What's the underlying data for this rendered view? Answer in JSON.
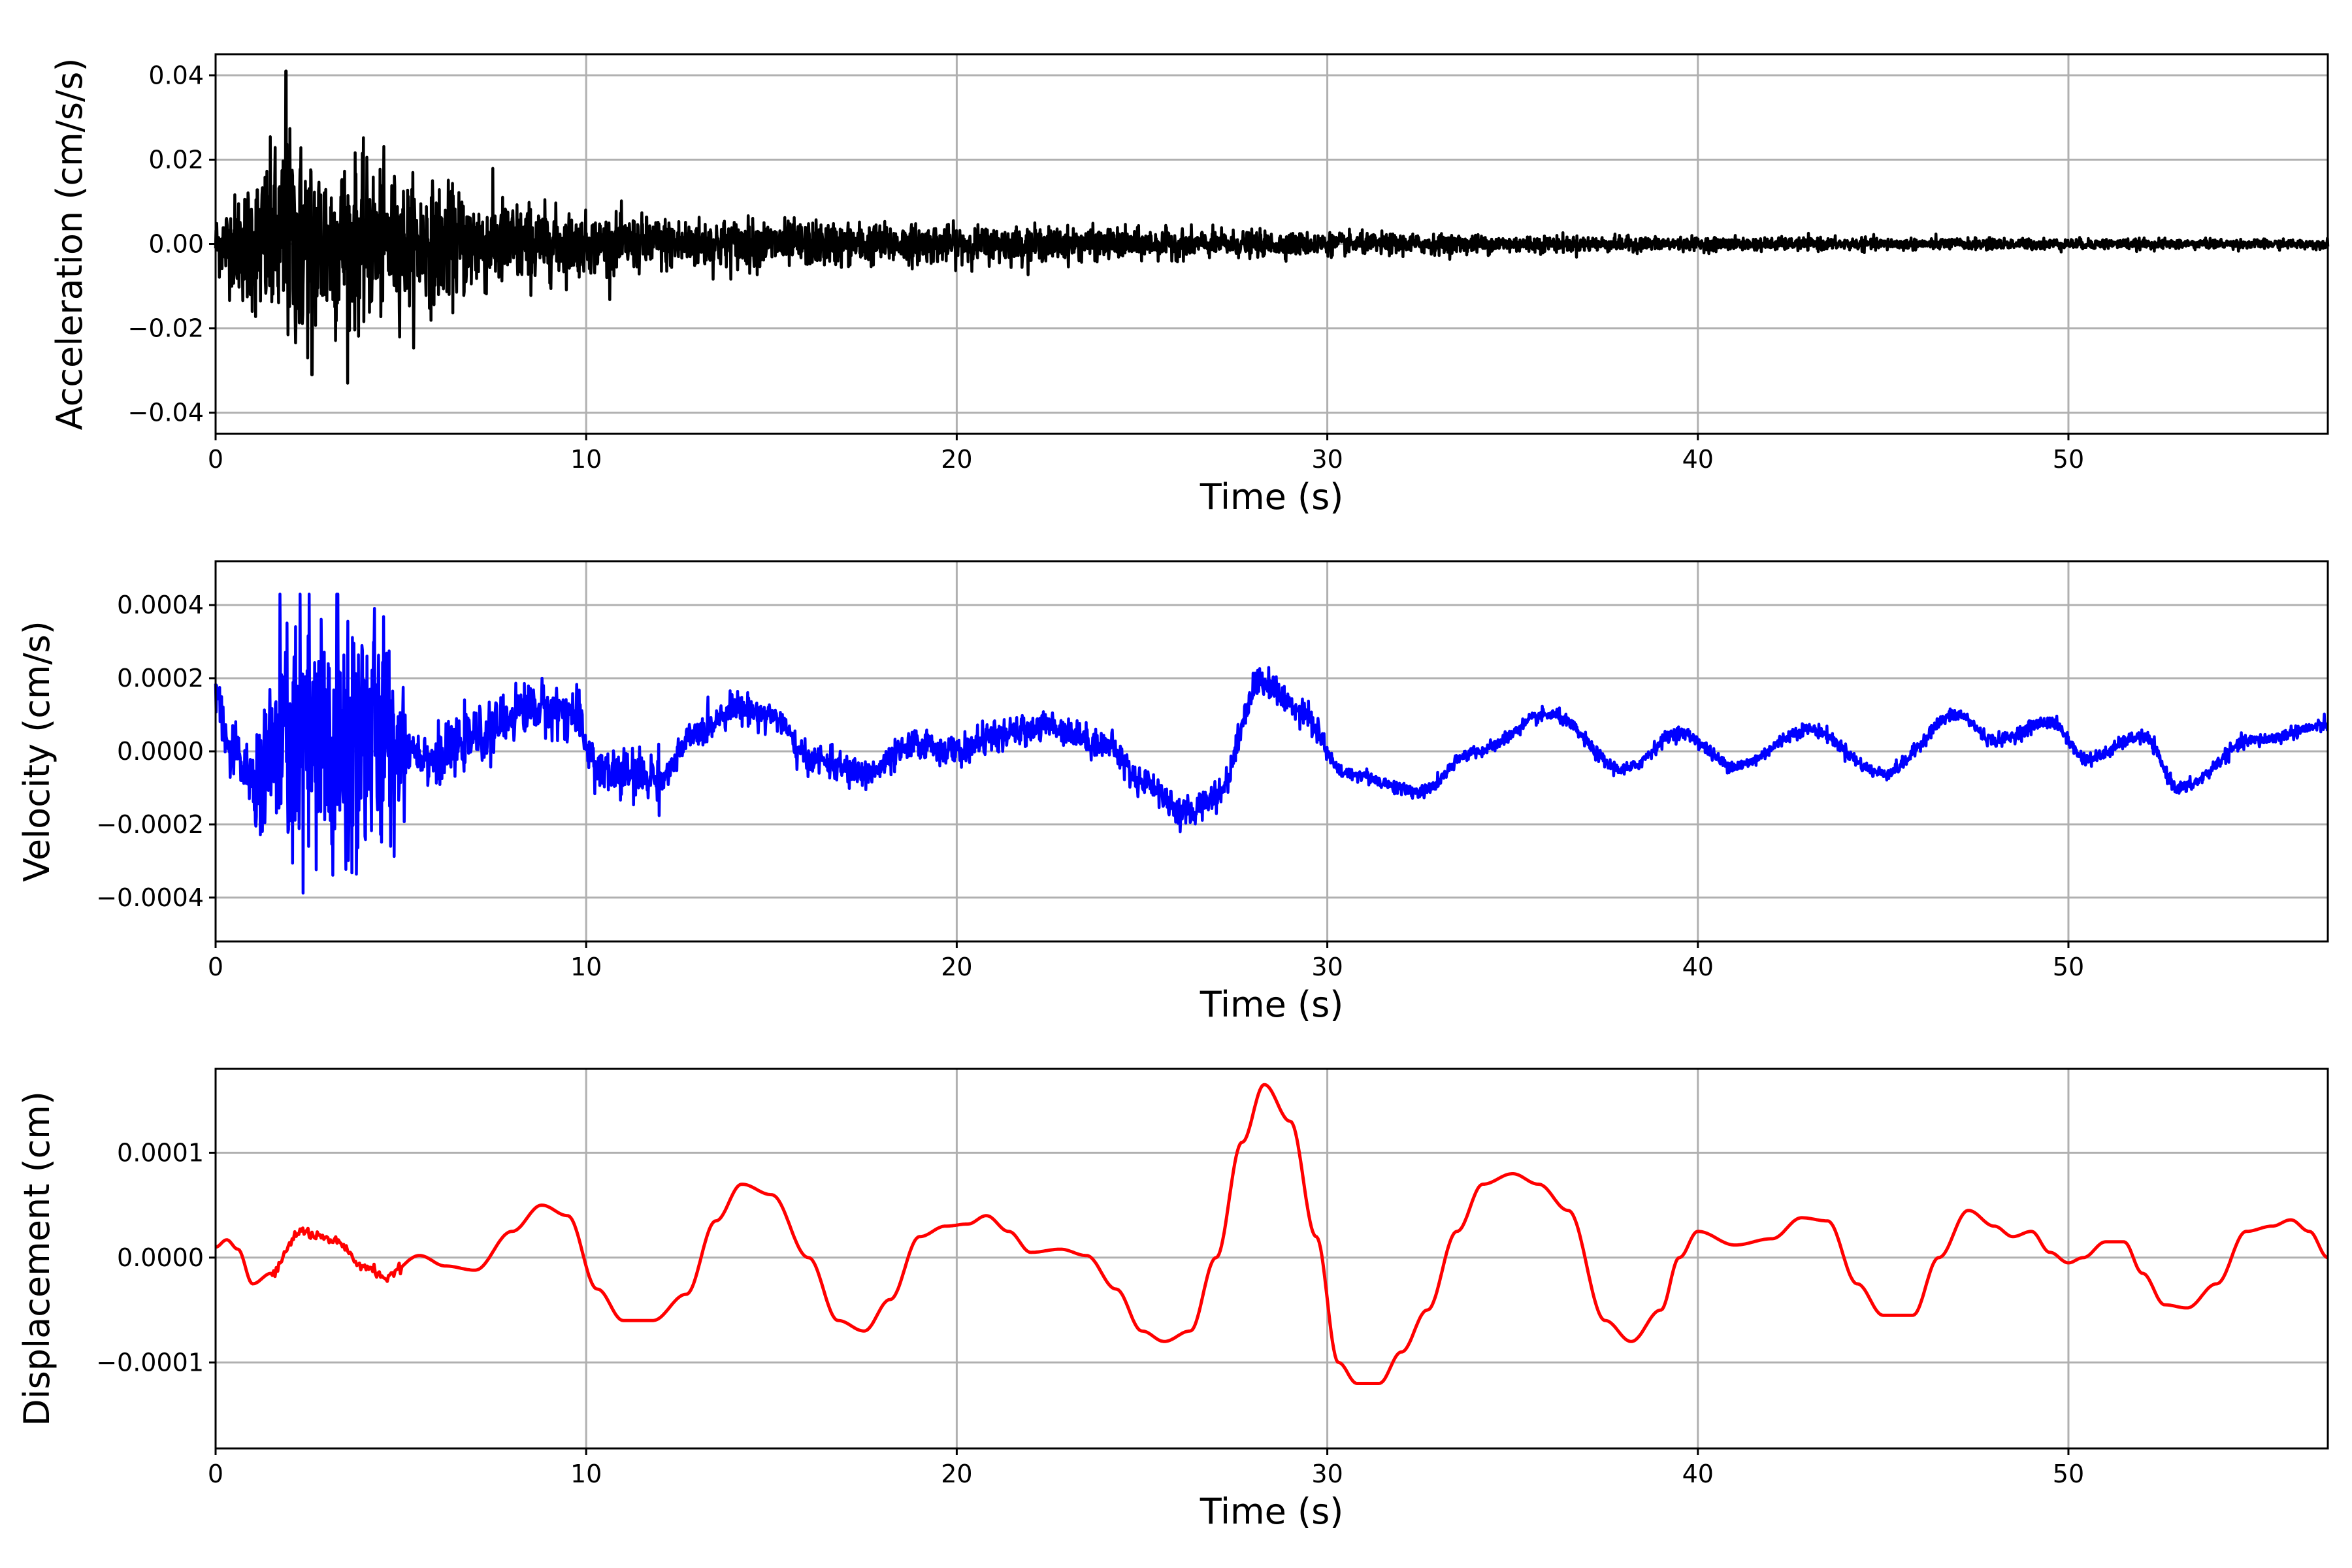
{
  "colors": {
    "acceleration": "#000000",
    "velocity": "#0000ff",
    "displacement": "#ff0000",
    "grid": "#b0b0b0"
  },
  "chart_data": [
    {
      "type": "line",
      "series": [
        {
          "name": "",
          "color": "#000000",
          "kind": "acceleration"
        }
      ],
      "xlabel": "Time (s)",
      "ylabel": "Acceleration (cm/s/s)",
      "xlim": [
        0,
        57
      ],
      "ylim": [
        -0.045,
        0.045
      ],
      "xticks": [
        0,
        10,
        20,
        30,
        40,
        50
      ],
      "xtick_labels": [
        "0",
        "10",
        "20",
        "30",
        "40",
        "50"
      ],
      "yticks": [
        -0.04,
        -0.02,
        0.0,
        0.02,
        0.04
      ],
      "ytick_labels": [
        "−0.04",
        "−0.02",
        "0.00",
        "0.02",
        "0.04"
      ],
      "grid": true,
      "envelope": {
        "peak_positive": 0.041,
        "peak_positive_time": 1.9,
        "peak_negative": -0.031,
        "peak_negative_time": 2.6,
        "amplitude_at": [
          [
            0,
            0.008
          ],
          [
            2,
            0.03
          ],
          [
            5,
            0.018
          ],
          [
            10,
            0.008
          ],
          [
            20,
            0.005
          ],
          [
            30,
            0.003
          ],
          [
            40,
            0.0018
          ],
          [
            57,
            0.0012
          ]
        ]
      }
    },
    {
      "type": "line",
      "series": [
        {
          "name": "",
          "color": "#0000ff",
          "kind": "velocity"
        }
      ],
      "xlabel": "Time (s)",
      "ylabel": "Velocity (cm/s)",
      "xlim": [
        0,
        57
      ],
      "ylim": [
        -0.00052,
        0.00052
      ],
      "xticks": [
        0,
        10,
        20,
        30,
        40,
        50
      ],
      "xtick_labels": [
        "0",
        "10",
        "20",
        "30",
        "40",
        "50"
      ],
      "yticks": [
        -0.0004,
        -0.0002,
        0.0,
        0.0002,
        0.0004
      ],
      "ytick_labels": [
        "−0.0004",
        "−0.0002",
        "0.0000",
        "0.0002",
        "0.0004"
      ],
      "grid": true,
      "trend": {
        "t": [
          0,
          0.4,
          1,
          2,
          3,
          4,
          5,
          6,
          7,
          8.5,
          9.5,
          10.5,
          12,
          13,
          14,
          15,
          16,
          17.5,
          19,
          20,
          21,
          22.5,
          24,
          25,
          26.2,
          27,
          28.2,
          29.2,
          30.5,
          32.5,
          34,
          36,
          38,
          39.5,
          41,
          43,
          45,
          47,
          48,
          49.5,
          50.5,
          52,
          53,
          55,
          57
        ],
        "v": [
          0.00017,
          0.0,
          -8e-05,
          3e-05,
          -1e-05,
          5e-05,
          2e-05,
          -2e-05,
          4e-05,
          0.00012,
          0.00011,
          -6e-05,
          -7e-05,
          5e-05,
          0.00012,
          0.0001,
          -2e-05,
          -6e-05,
          2e-05,
          0.0,
          4e-05,
          7e-05,
          2e-05,
          -8e-05,
          -0.00017,
          -0.00012,
          0.00019,
          0.00012,
          -6e-05,
          -0.00011,
          0.0,
          0.0001,
          -5e-05,
          5e-05,
          -4e-05,
          6e-05,
          -6e-05,
          0.0001,
          3e-05,
          8e-05,
          -2e-05,
          4e-05,
          -0.0001,
          3e-05,
          7e-05
        ]
      },
      "burst": {
        "start": 1.0,
        "end": 5.2,
        "amplitude": 0.00042
      }
    },
    {
      "type": "line",
      "series": [
        {
          "name": "",
          "color": "#ff0000",
          "kind": "displacement"
        }
      ],
      "xlabel": "Time (s)",
      "ylabel": "Displacement (cm)",
      "xlim": [
        0,
        57
      ],
      "ylim": [
        -0.000182,
        0.00018
      ],
      "xticks": [
        0,
        10,
        20,
        30,
        40,
        50
      ],
      "xtick_labels": [
        "0",
        "10",
        "20",
        "30",
        "40",
        "50"
      ],
      "yticks": [
        -0.0001,
        0.0,
        0.0001
      ],
      "ytick_labels": [
        "−0.0001",
        "0.0000",
        "0.0001"
      ],
      "grid": true,
      "points": {
        "t": [
          0,
          0.3,
          0.6,
          1.0,
          1.5,
          2.3,
          3.2,
          4.0,
          4.6,
          5.5,
          6.2,
          7.0,
          8.0,
          8.8,
          9.5,
          10.3,
          11.0,
          11.8,
          12.7,
          13.5,
          14.2,
          15.0,
          16.0,
          16.8,
          17.5,
          18.2,
          19.0,
          19.7,
          20.3,
          20.8,
          21.4,
          22.0,
          22.8,
          23.5,
          24.3,
          25.0,
          25.6,
          26.3,
          27.0,
          27.7,
          28.3,
          29.0,
          29.7,
          30.3,
          30.8,
          31.4,
          32.0,
          32.7,
          33.5,
          34.2,
          35.0,
          35.7,
          36.5,
          37.5,
          38.2,
          39.0,
          39.5,
          40.0,
          41.0,
          42.0,
          42.8,
          43.5,
          44.3,
          45.0,
          45.8,
          46.5,
          47.3,
          48.0,
          48.5,
          49.0,
          49.5,
          50.0,
          50.4,
          51.0,
          51.5,
          52.0,
          52.6,
          53.2,
          54.0,
          54.8,
          55.5,
          56.0,
          56.5,
          57.0
        ],
        "v": [
          1e-05,
          1.7e-05,
          8e-06,
          -2.5e-05,
          -1.5e-05,
          2.5e-05,
          1.5e-05,
          -8e-06,
          -1.8e-05,
          2e-06,
          -8e-06,
          -1.2e-05,
          2.5e-05,
          5e-05,
          4e-05,
          -3e-05,
          -6e-05,
          -6e-05,
          -3.5e-05,
          3.5e-05,
          7e-05,
          6e-05,
          0.0,
          -6e-05,
          -7e-05,
          -4e-05,
          2e-05,
          3e-05,
          3.2e-05,
          4e-05,
          2.5e-05,
          5e-06,
          8e-06,
          2e-06,
          -3e-05,
          -7e-05,
          -8e-05,
          -7e-05,
          0.0,
          0.00011,
          0.000165,
          0.00013,
          2e-05,
          -0.0001,
          -0.00012,
          -0.00012,
          -9e-05,
          -5e-05,
          2.5e-05,
          7e-05,
          8e-05,
          7e-05,
          4.5e-05,
          -6e-05,
          -8e-05,
          -5e-05,
          0.0,
          2.5e-05,
          1.2e-05,
          1.8e-05,
          3.8e-05,
          3.5e-05,
          -2.5e-05,
          -5.5e-05,
          -5.5e-05,
          0.0,
          4.5e-05,
          3e-05,
          2e-05,
          2.5e-05,
          5e-06,
          -5e-06,
          0.0,
          1.5e-05,
          1.5e-05,
          -1.5e-05,
          -4.5e-05,
          -4.8e-05,
          -2.5e-05,
          2.5e-05,
          3e-05,
          3.6e-05,
          2.5e-05,
          0.0
        ]
      }
    }
  ]
}
